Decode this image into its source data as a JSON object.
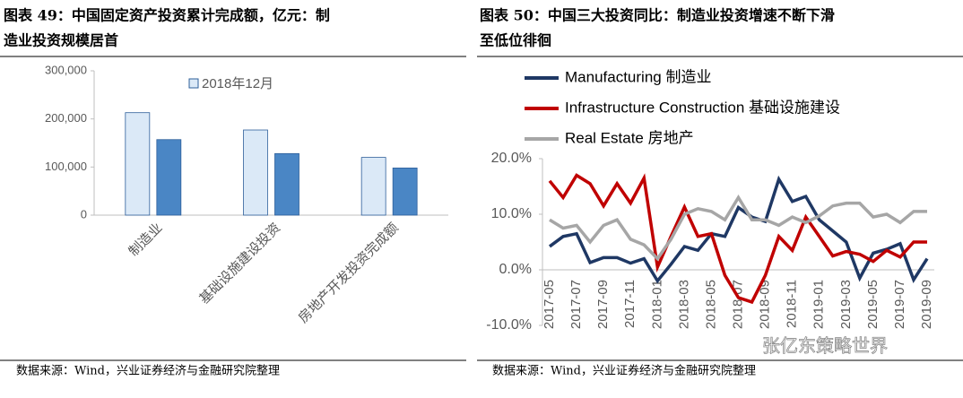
{
  "chart_data": [
    {
      "type": "bar",
      "title": [
        "图表 49：中国固定资产投资累计完成额，亿元：制",
        "造业投资规模居首"
      ],
      "categories": [
        "制造业",
        "基础设施建设投资",
        "房地产开发投资完成额"
      ],
      "series": [
        {
          "name": "2018年12月",
          "color": "#dbe9f7",
          "values": [
            213000,
            177000,
            120000
          ]
        },
        {
          "color": "#4a86c5",
          "values": [
            157000,
            128000,
            98000
          ]
        }
      ],
      "ylim": [
        0,
        300000
      ],
      "yticks": [
        0,
        {
          "value": 100000,
          "label": "100,000"
        },
        {
          "value": 200000,
          "label": "200,000"
        },
        {
          "value": 300000,
          "label": "300,000"
        }
      ],
      "source": "数据来源：Wind，兴业证券经济与金融研究院整理"
    },
    {
      "type": "line",
      "title": [
        "图表 50：中国三大投资同比：制造业投资增速不断下滑",
        "至低位徘徊"
      ],
      "categories": [
        "2017-05",
        null,
        "2017-07",
        null,
        "2017-09",
        null,
        "2017-11",
        null,
        "2018-01",
        null,
        "2018-03",
        null,
        "2018-05",
        null,
        "2018-07",
        null,
        "2018-09",
        null,
        "2018-11",
        null,
        "2019-01",
        null,
        "2019-03",
        null,
        "2019-05",
        null,
        "2019-07",
        null,
        "2019-09"
      ],
      "series": [
        {
          "name": "Manufacturing 制造业",
          "color": "#1f3864",
          "values": [
            4.2,
            6.0,
            6.5,
            1.3,
            2.2,
            2.2,
            1.2,
            2.0,
            -2.0,
            1.0,
            4.2,
            3.5,
            6.5,
            6.0,
            11.2,
            9.5,
            8.7,
            16.3,
            12.3,
            13.2,
            9.0,
            7.0,
            5.0,
            -1.5,
            3.0,
            3.7,
            4.7,
            -1.8,
            2.0
          ]
        },
        {
          "name": "Infrastructure Construction 基础设施建设",
          "color": "#c00000",
          "values": [
            16,
            13,
            17,
            15.5,
            11.5,
            15.5,
            12,
            16.5,
            0.5,
            6,
            11.3,
            6,
            6.5,
            -1,
            -5,
            -5.8,
            -1,
            6,
            3.5,
            9.5,
            6,
            2.5,
            3.3,
            2.8,
            1.5,
            3.5,
            2.3,
            5,
            5
          ]
        },
        {
          "name": "Real Estate 房地产",
          "color": "#a6a6a6",
          "values": [
            9,
            7.5,
            8,
            5,
            8,
            9,
            5.5,
            4.5,
            2,
            5.5,
            10,
            11,
            10.5,
            9,
            13,
            9,
            9,
            8,
            9.5,
            8.5,
            9.7,
            11.5,
            12,
            12,
            9.5,
            10,
            8.5,
            10.5,
            10.5
          ]
        }
      ],
      "ylim": [
        -10,
        20
      ],
      "yticks": [
        {
          "value": -10,
          "label": "-10.0%"
        },
        {
          "value": 0,
          "label": "0.0%"
        },
        {
          "value": 10,
          "label": "10.0%"
        },
        {
          "value": 20,
          "label": "20.0%"
        }
      ],
      "source": "数据来源：Wind，兴业证券经济与金融研究院整理",
      "watermark": "张亿东策略世界"
    }
  ]
}
